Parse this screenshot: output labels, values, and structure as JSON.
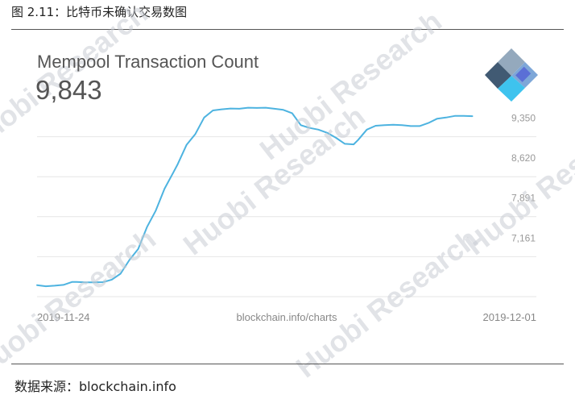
{
  "figure": {
    "caption": "图 2.11：比特币未确认交易数图",
    "source": "数据来源：blockchain.info"
  },
  "watermark": "Huobi Research",
  "logo_icon": "blockchain-logo-icon",
  "colors": {
    "line": "#4db3e0",
    "grid": "#e6e6e6",
    "text": "#999999"
  },
  "chart_data": {
    "type": "line",
    "title": "Mempool Transaction Count",
    "headline_value": "9,843",
    "x_start_label": "2019-11-24",
    "x_end_label": "2019-12-01",
    "center_label": "blockchain.info/charts",
    "yticks": [
      7161,
      7891,
      8620,
      9350
    ],
    "ytick_labels": [
      "7,161",
      "7,891",
      "8,620",
      "9,350"
    ],
    "ylim": [
      6430,
      10080
    ],
    "xlim": [
      0,
      100
    ],
    "grid": true,
    "series": [
      {
        "x": [
          0,
          2,
          4,
          6,
          8,
          9,
          11,
          13,
          15,
          17,
          19,
          21,
          23,
          25,
          27,
          29,
          31,
          32,
          34,
          36,
          38,
          40,
          42,
          44,
          46,
          48,
          50,
          52,
          54,
          56,
          58,
          60,
          62,
          64,
          66,
          68,
          70,
          72,
          73,
          75,
          77,
          79,
          81,
          83,
          85,
          87,
          89,
          91,
          93,
          95,
          97,
          99
        ],
        "y": [
          6640,
          6620,
          6630,
          6645,
          6700,
          6700,
          6690,
          6690,
          6695,
          6740,
          6850,
          7100,
          7300,
          7700,
          8000,
          8400,
          8700,
          8850,
          9200,
          9400,
          9700,
          9830,
          9850,
          9865,
          9860,
          9880,
          9875,
          9880,
          9860,
          9840,
          9780,
          9560,
          9510,
          9480,
          9420,
          9330,
          9220,
          9210,
          9290,
          9480,
          9550,
          9560,
          9570,
          9560,
          9545,
          9545,
          9600,
          9680,
          9700,
          9730,
          9730,
          9725
        ]
      }
    ]
  }
}
